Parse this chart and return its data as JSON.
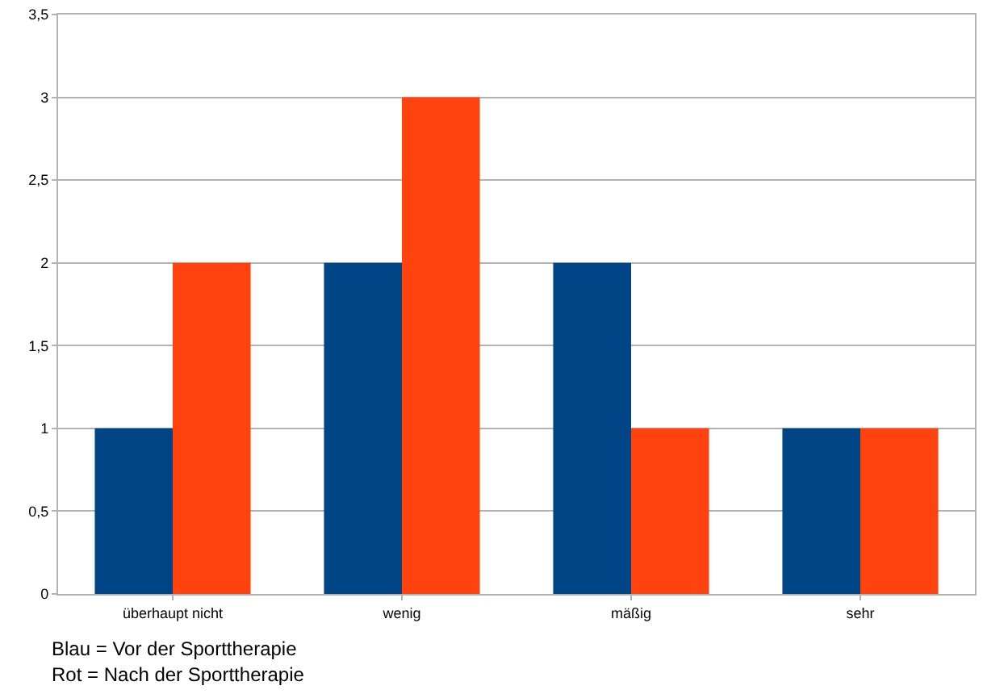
{
  "chart_data": {
    "type": "bar",
    "categories": [
      "überhaupt nicht",
      "wenig",
      "mäßig",
      "sehr"
    ],
    "series": [
      {
        "color": "#004586",
        "values": [
          1,
          2,
          2,
          1
        ]
      },
      {
        "color": "#ff420e",
        "values": [
          2,
          3,
          1,
          1
        ]
      }
    ],
    "ylim": [
      0,
      3.5
    ],
    "yticks": [
      0,
      {
        "value": 0.5,
        "label": "0,5"
      },
      1,
      {
        "value": 1.5,
        "label": "1,5"
      },
      2,
      {
        "value": 2.5,
        "label": "2,5"
      },
      3,
      {
        "value": 3.5,
        "label": "3,5"
      }
    ],
    "grid": "y",
    "annotations": [
      "Blau = Vor der Sporttherapie",
      "Rot = Nach der Sporttherapie"
    ]
  }
}
